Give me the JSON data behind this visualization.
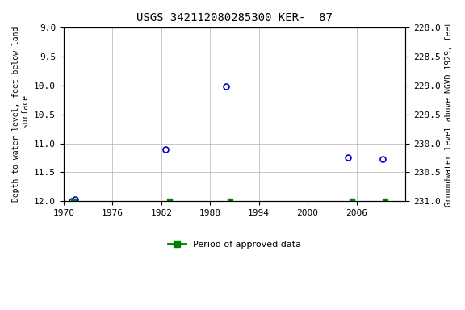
{
  "title": "USGS 342112080285300 KER-  87",
  "xlabel": "",
  "ylabel_left": "Depth to water level, feet below land\n surface",
  "ylabel_right": "Groundwater level above NGVD 1929, feet",
  "ylim_left": [
    9.0,
    12.0
  ],
  "ylim_right": [
    228.0,
    231.0
  ],
  "xlim": [
    1970,
    2012
  ],
  "xticks": [
    1970,
    1976,
    1982,
    1988,
    1994,
    2000,
    2006
  ],
  "yticks_left": [
    9.0,
    9.5,
    10.0,
    10.5,
    11.0,
    11.5,
    12.0
  ],
  "yticks_right": [
    228.0,
    228.5,
    229.0,
    229.5,
    230.0,
    230.5,
    231.0
  ],
  "data_points_x": [
    1971.0,
    1971.4,
    1982.5,
    1990.0,
    2005.0,
    2009.2
  ],
  "data_points_y": [
    12.0,
    11.97,
    11.1,
    10.02,
    11.25,
    11.27
  ],
  "approved_data_x": [
    1971.2,
    1983.0,
    1990.5,
    2005.5,
    2009.5
  ],
  "approved_data_y": [
    12.0,
    12.0,
    12.0,
    12.0,
    12.0
  ],
  "point_color": "#0000cc",
  "approved_color": "#008000",
  "bg_color": "#ffffff",
  "grid_color": "#b0b0b0",
  "font_family": "monospace"
}
